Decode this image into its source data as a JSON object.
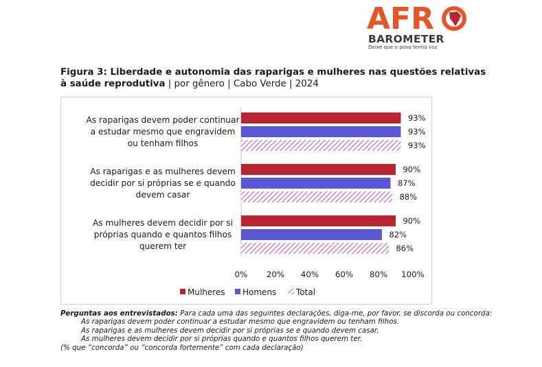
{
  "logo": {
    "brand_top": "AFR",
    "brand_bottom": "BAROMETER",
    "tagline": "Deixe que o povo tenha voz"
  },
  "title": {
    "bold": "Figura 3: Liberdade e autonomia das raparigas e mulheres nas questões relativas à saúde reprodutiva",
    "rest": " | por gênero | Cabo Verde | 2024"
  },
  "colors": {
    "mulheres": "#b8242f",
    "homens": "#5b58d6",
    "total": "#c35ac1",
    "text": "#1a1a1a"
  },
  "chart_data": {
    "type": "bar",
    "orientation": "horizontal",
    "categories": [
      [
        "As raparigas devem poder continuar",
        "a estudar mesmo que engravidem",
        "ou tenham filhos"
      ],
      [
        "As raparigas e as mulheres devem",
        "decidir por si próprias se e quando",
        "devem casar"
      ],
      [
        "As mulheres devem decidir por si",
        "próprias quando e quantos filhos",
        "querem ter"
      ]
    ],
    "series": [
      {
        "name": "Mulheres",
        "values": [
          93,
          90,
          90
        ],
        "labels": [
          "93%",
          "90%",
          "90%"
        ],
        "pattern": "solid"
      },
      {
        "name": "Homens",
        "values": [
          93,
          87,
          82
        ],
        "labels": [
          "93%",
          "87%",
          "82%"
        ],
        "pattern": "solid"
      },
      {
        "name": "Total",
        "values": [
          93,
          88,
          86
        ],
        "labels": [
          "93%",
          "88%",
          "86%"
        ],
        "pattern": "hatch"
      }
    ],
    "xlim": [
      0,
      100
    ],
    "xticks": [
      "0%",
      "20%",
      "40%",
      "60%",
      "80%",
      "100%"
    ],
    "legend_position": "bottom",
    "grid": false
  },
  "notes": {
    "question_label": "Perguntas aos entrevistados:",
    "question_text": " Para cada uma das seguintes declarações, diga-me, por favor, se discorda ou concorda:",
    "items": [
      "As raparigas devem poder continuar a estudar mesmo que engravidem ou tenham filhos.",
      "As raparigas e as mulheres devem decidir por si próprias se e quando devem casar.",
      "As mulheres devem decidir por si próprias quando e quantos filhos querem ter."
    ],
    "footer": "(% que “concorda” ou “concorda fortemente” com cada declaração)"
  }
}
